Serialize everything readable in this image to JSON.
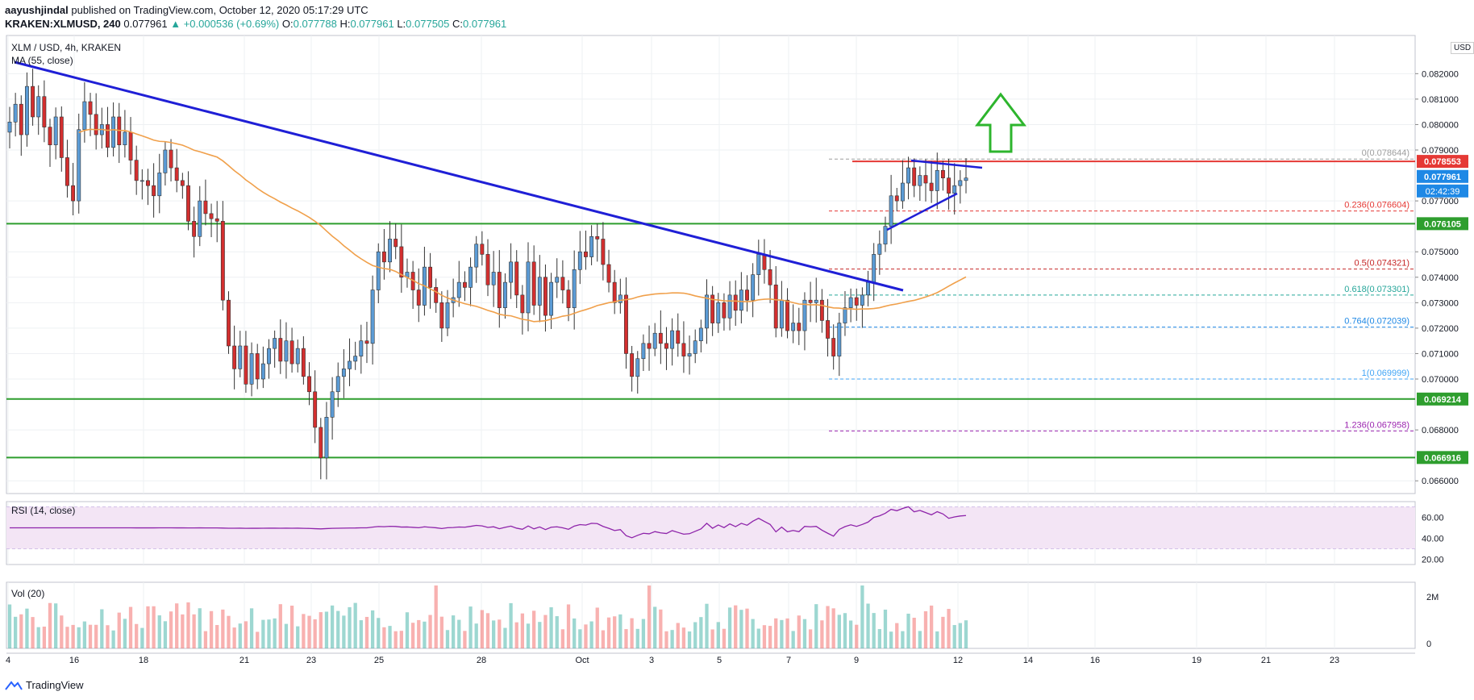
{
  "header": {
    "author": "aayushjindal",
    "published_text": "published on TradingView.com, October 12, 2020 05:17:29 UTC",
    "symbol": "KRAKEN:XLMUSD, 240",
    "price": "0.077961",
    "change": "▲ +0.000536 (+0.69%)",
    "o_label": "O:",
    "o_value": "0.077788",
    "h_label": "H:",
    "h_value": "0.077961",
    "l_label": "L:",
    "l_value": "0.077505",
    "c_label": "C:",
    "c_value": "0.077961"
  },
  "pane": {
    "title": "XLM / USD, 4h, KRAKEN",
    "ma_label": "MA (55, close)",
    "rsi_label": "RSI (14, close)",
    "vol_label": "Vol (20)",
    "currency": "USD",
    "countdown": "02:42:39"
  },
  "footer": {
    "brand": "TradingView"
  },
  "colors": {
    "up": "#26a69a",
    "down": "#ef5350",
    "candle_up": "#5b9bd5",
    "candle_down": "#d32f2f",
    "trend": "#1f1fd6",
    "ma": "#f0a04b",
    "support": "#2e9e2e",
    "resistance": "#e53935",
    "arrow": "#2db52d",
    "rsi": "#8e24aa",
    "rsi_band": "#f3e5f5"
  },
  "chart_data": {
    "type": "candlestick",
    "y_axis": {
      "ticks": [
        "0.082000",
        "0.081000",
        "0.080000",
        "0.079000",
        "0.077000",
        "0.075000",
        "0.074000",
        "0.073000",
        "0.072000",
        "0.071000",
        "0.070000",
        "0.068000",
        "0.066000"
      ],
      "range": [
        0.0655,
        0.0835
      ]
    },
    "x_axis": {
      "ticks": [
        "4",
        "16",
        "18",
        "21",
        "23",
        "25",
        "28",
        "Oct",
        "3",
        "5",
        "7",
        "9",
        "12",
        "14",
        "16",
        "19",
        "21",
        "23"
      ]
    },
    "price_tags": [
      {
        "value": "0.078553",
        "color": "#e53935"
      },
      {
        "value": "0.077961",
        "color": "#1e88e5"
      },
      {
        "value": "0.076105",
        "color": "#2e9e2e"
      },
      {
        "value": "0.069214",
        "color": "#2e9e2e"
      },
      {
        "value": "0.066916",
        "color": "#2e9e2e"
      }
    ],
    "fib_levels": [
      {
        "label": "0(0.078644)",
        "value": 0.078644,
        "color": "#9e9e9e"
      },
      {
        "label": "0.236(0.076604)",
        "value": 0.076604,
        "color": "#e53935"
      },
      {
        "label": "0.5(0.074321)",
        "value": 0.074321,
        "color": "#c62828"
      },
      {
        "label": "0.618(0.073301)",
        "value": 0.073301,
        "color": "#26a69a"
      },
      {
        "label": "0.764(0.072039)",
        "value": 0.072039,
        "color": "#1e88e5"
      },
      {
        "label": "1(0.069999)",
        "value": 0.069999,
        "color": "#42a5f5"
      },
      {
        "label": "1.236(0.067958)",
        "value": 0.067958,
        "color": "#9c27b0"
      }
    ],
    "horizontal_levels": [
      0.076105,
      0.069214,
      0.066916
    ],
    "resistance_level": 0.078553,
    "rsi": {
      "ticks": [
        "60.00",
        "40.00",
        "20.00"
      ],
      "range": [
        15,
        75
      ]
    },
    "volume": {
      "ticks": [
        "2M",
        "0"
      ],
      "max": 2500000
    },
    "candles_close": [
      0.0801,
      0.0808,
      0.0796,
      0.0815,
      0.0803,
      0.0811,
      0.0799,
      0.0792,
      0.0803,
      0.0787,
      0.0776,
      0.077,
      0.0798,
      0.0809,
      0.0804,
      0.0796,
      0.08,
      0.0791,
      0.0803,
      0.0792,
      0.0797,
      0.0786,
      0.0778,
      0.0778,
      0.0776,
      0.0772,
      0.0781,
      0.079,
      0.0783,
      0.0778,
      0.0776,
      0.0762,
      0.0756,
      0.077,
      0.0765,
      0.0763,
      0.0762,
      0.0731,
      0.0713,
      0.0704,
      0.0713,
      0.0698,
      0.071,
      0.07,
      0.0706,
      0.0712,
      0.0716,
      0.0707,
      0.0715,
      0.0706,
      0.0712,
      0.0701,
      0.0695,
      0.0681,
      0.0669,
      0.0685,
      0.0695,
      0.0701,
      0.0704,
      0.0707,
      0.0709,
      0.0715,
      0.0714,
      0.0735,
      0.075,
      0.0746,
      0.0755,
      0.0752,
      0.074,
      0.0742,
      0.0735,
      0.0729,
      0.0744,
      0.0736,
      0.073,
      0.072,
      0.073,
      0.0732,
      0.0738,
      0.0736,
      0.0744,
      0.0753,
      0.0749,
      0.0737,
      0.0742,
      0.0728,
      0.0738,
      0.0746,
      0.0733,
      0.0726,
      0.0746,
      0.0729,
      0.074,
      0.0725,
      0.0738,
      0.074,
      0.0735,
      0.0728,
      0.0743,
      0.075,
      0.0748,
      0.0756,
      0.0755,
      0.0745,
      0.0738,
      0.073,
      0.0733,
      0.071,
      0.0701,
      0.0708,
      0.0714,
      0.0712,
      0.0718,
      0.0714,
      0.0712,
      0.0719,
      0.0714,
      0.0709,
      0.071,
      0.0715,
      0.072,
      0.0733,
      0.0722,
      0.073,
      0.0724,
      0.0733,
      0.0727,
      0.0735,
      0.0731,
      0.0741,
      0.0749,
      0.0743,
      0.0737,
      0.072,
      0.0731,
      0.0719,
      0.0722,
      0.0719,
      0.0731,
      0.073,
      0.0731,
      0.0723,
      0.0716,
      0.0709,
      0.0722,
      0.0728,
      0.0732,
      0.0729,
      0.0733,
      0.0738,
      0.0749,
      0.0753,
      0.076,
      0.0772,
      0.077,
      0.0777,
      0.0783,
      0.0776,
      0.078,
      0.0777,
      0.0774,
      0.0782,
      0.0779,
      0.0773,
      0.0776,
      0.0778,
      0.0779
    ]
  }
}
